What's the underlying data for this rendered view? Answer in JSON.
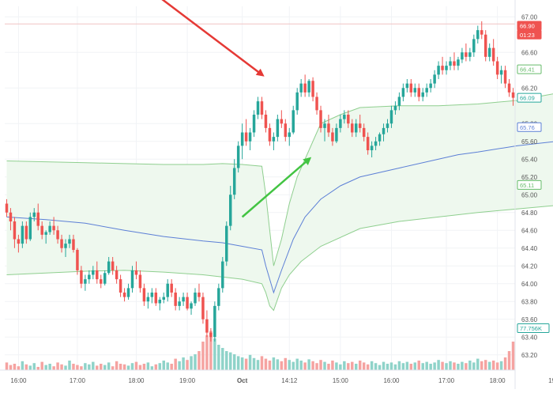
{
  "chart_data": {
    "type": "candlestick",
    "x_axis": {
      "tick_labels": [
        "16:00",
        "17:00",
        "18:00",
        "19:00",
        "Oct",
        "14:12",
        "15:00",
        "16:00",
        "17:00",
        "18:00",
        "19:00"
      ],
      "bold_label": "Oct"
    },
    "y_axis": {
      "position": "right",
      "range": [
        63.1,
        67.1
      ],
      "ticks": [
        67.0,
        66.6,
        66.2,
        65.8,
        65.6,
        65.4,
        65.2,
        65.0,
        64.8,
        64.6,
        64.4,
        64.2,
        64.0,
        63.8,
        63.6,
        63.4,
        63.2
      ],
      "tick_labels": [
        "67.00",
        "66.60",
        "66.20",
        "65.80",
        "65.60",
        "65.40",
        "65.20",
        "65.00",
        "64.80",
        "64.60",
        "64.40",
        "64.20",
        "64.00",
        "63.80",
        "63.60",
        "63.40",
        "63.20"
      ]
    },
    "price_badges": [
      {
        "label": "66.90",
        "value": 66.9,
        "color": "#ef5350",
        "fill": true
      },
      {
        "label": "01:23",
        "value": 66.8,
        "color": "#ef5350",
        "fill": true
      },
      {
        "label": "66.41",
        "value": 66.41,
        "color": "#66bb6a",
        "fill": false
      },
      {
        "label": "66.09",
        "value": 66.09,
        "color": "#26a69a",
        "fill": false
      },
      {
        "label": "65.76",
        "value": 65.76,
        "color": "#5c7fd6",
        "fill": false
      },
      {
        "label": "65.11",
        "value": 65.11,
        "color": "#66bb6a",
        "fill": false
      },
      {
        "label": "77.756K",
        "value": 63.5,
        "color": "#26a69a",
        "fill": false
      }
    ],
    "bands": {
      "upper": [
        [
          0,
          65.38
        ],
        [
          10,
          65.37
        ],
        [
          20,
          65.36
        ],
        [
          30,
          65.35
        ],
        [
          40,
          65.34
        ],
        [
          50,
          65.34
        ],
        [
          55,
          65.35
        ],
        [
          60,
          65.34
        ],
        [
          65,
          65.32
        ],
        [
          66,
          65.0
        ],
        [
          67,
          64.6
        ],
        [
          68,
          64.2
        ],
        [
          70,
          64.5
        ],
        [
          72,
          64.9
        ],
        [
          74,
          65.2
        ],
        [
          76,
          65.4
        ],
        [
          78,
          65.6
        ],
        [
          80,
          65.8
        ],
        [
          85,
          65.9
        ],
        [
          90,
          65.98
        ],
        [
          100,
          66.0
        ],
        [
          110,
          66.0
        ],
        [
          120,
          66.02
        ],
        [
          130,
          66.06
        ],
        [
          140,
          66.14
        ],
        [
          145,
          66.2
        ],
        [
          150,
          66.26
        ],
        [
          155,
          66.32
        ],
        [
          160,
          66.4
        ],
        [
          164,
          66.45
        ]
      ],
      "lower": [
        [
          0,
          64.1
        ],
        [
          10,
          64.12
        ],
        [
          20,
          64.14
        ],
        [
          30,
          64.15
        ],
        [
          40,
          64.13
        ],
        [
          50,
          64.1
        ],
        [
          60,
          64.05
        ],
        [
          65,
          64.0
        ],
        [
          66,
          63.9
        ],
        [
          67,
          63.75
        ],
        [
          68,
          63.7
        ],
        [
          70,
          63.95
        ],
        [
          72,
          64.1
        ],
        [
          75,
          64.25
        ],
        [
          80,
          64.42
        ],
        [
          90,
          64.62
        ],
        [
          100,
          64.7
        ],
        [
          110,
          64.75
        ],
        [
          120,
          64.8
        ],
        [
          130,
          64.84
        ],
        [
          140,
          64.88
        ],
        [
          150,
          64.94
        ],
        [
          158,
          65.0
        ],
        [
          164,
          65.11
        ]
      ],
      "middle": [
        [
          0,
          64.75
        ],
        [
          10,
          64.72
        ],
        [
          20,
          64.68
        ],
        [
          30,
          64.6
        ],
        [
          40,
          64.53
        ],
        [
          50,
          64.48
        ],
        [
          55,
          64.46
        ],
        [
          60,
          64.42
        ],
        [
          65,
          64.38
        ],
        [
          66,
          64.2
        ],
        [
          68,
          63.9
        ],
        [
          70,
          64.15
        ],
        [
          73,
          64.5
        ],
        [
          76,
          64.75
        ],
        [
          80,
          64.95
        ],
        [
          85,
          65.1
        ],
        [
          90,
          65.2
        ],
        [
          100,
          65.3
        ],
        [
          110,
          65.4
        ],
        [
          115,
          65.45
        ],
        [
          120,
          65.48
        ],
        [
          130,
          65.55
        ],
        [
          140,
          65.6
        ],
        [
          150,
          65.68
        ],
        [
          158,
          65.72
        ],
        [
          164,
          65.76
        ]
      ]
    },
    "candles": [
      [
        64.9,
        64.95,
        64.75,
        64.8
      ],
      [
        64.8,
        64.85,
        64.6,
        64.7
      ],
      [
        64.7,
        64.75,
        64.4,
        64.5
      ],
      [
        64.5,
        64.55,
        64.35,
        64.45
      ],
      [
        64.45,
        64.7,
        64.4,
        64.65
      ],
      [
        64.65,
        64.7,
        64.45,
        64.5
      ],
      [
        64.5,
        64.8,
        64.48,
        64.75
      ],
      [
        64.75,
        64.85,
        64.7,
        64.8
      ],
      [
        64.8,
        64.9,
        64.6,
        64.65
      ],
      [
        64.65,
        64.7,
        64.5,
        64.55
      ],
      [
        64.55,
        64.6,
        64.45,
        64.58
      ],
      [
        64.58,
        64.7,
        64.55,
        64.65
      ],
      [
        64.65,
        64.75,
        64.55,
        64.6
      ],
      [
        64.6,
        64.65,
        64.45,
        64.5
      ],
      [
        64.5,
        64.55,
        64.35,
        64.4
      ],
      [
        64.4,
        64.5,
        64.3,
        64.45
      ],
      [
        64.45,
        64.55,
        64.4,
        64.5
      ],
      [
        64.5,
        64.55,
        64.35,
        64.38
      ],
      [
        64.38,
        64.4,
        64.1,
        64.15
      ],
      [
        64.15,
        64.2,
        63.95,
        64.0
      ],
      [
        64.0,
        64.1,
        63.92,
        64.05
      ],
      [
        64.05,
        64.15,
        64.0,
        64.1
      ],
      [
        64.1,
        64.2,
        64.05,
        64.15
      ],
      [
        64.15,
        64.25,
        64.0,
        64.05
      ],
      [
        64.05,
        64.1,
        63.95,
        64.0
      ],
      [
        64.0,
        64.15,
        63.98,
        64.12
      ],
      [
        64.12,
        64.3,
        64.1,
        64.25
      ],
      [
        64.25,
        64.3,
        64.1,
        64.15
      ],
      [
        64.15,
        64.2,
        64.0,
        64.05
      ],
      [
        64.05,
        64.1,
        63.85,
        63.9
      ],
      [
        63.9,
        63.95,
        63.8,
        63.85
      ],
      [
        63.85,
        64.0,
        63.82,
        63.95
      ],
      [
        63.95,
        64.2,
        63.9,
        64.15
      ],
      [
        64.15,
        64.25,
        64.05,
        64.1
      ],
      [
        64.1,
        64.15,
        63.9,
        63.95
      ],
      [
        63.95,
        64.0,
        63.75,
        63.8
      ],
      [
        63.8,
        63.9,
        63.72,
        63.85
      ],
      [
        63.85,
        63.95,
        63.78,
        63.9
      ],
      [
        63.9,
        63.95,
        63.75,
        63.78
      ],
      [
        63.78,
        63.85,
        63.7,
        63.82
      ],
      [
        63.82,
        63.9,
        63.78,
        63.85
      ],
      [
        63.85,
        64.05,
        63.8,
        64.0
      ],
      [
        64.0,
        64.05,
        63.85,
        63.9
      ],
      [
        63.9,
        63.95,
        63.7,
        63.75
      ],
      [
        63.75,
        63.85,
        63.7,
        63.8
      ],
      [
        63.8,
        63.9,
        63.75,
        63.85
      ],
      [
        63.85,
        63.9,
        63.7,
        63.72
      ],
      [
        63.72,
        63.8,
        63.65,
        63.78
      ],
      [
        63.78,
        63.95,
        63.75,
        63.9
      ],
      [
        63.9,
        64.0,
        63.8,
        63.85
      ],
      [
        63.85,
        63.9,
        63.55,
        63.6
      ],
      [
        63.6,
        63.7,
        63.4,
        63.45
      ],
      [
        63.45,
        63.5,
        63.35,
        63.4
      ],
      [
        63.4,
        63.8,
        63.35,
        63.75
      ],
      [
        63.75,
        64.0,
        63.7,
        63.95
      ],
      [
        63.95,
        64.3,
        63.9,
        64.25
      ],
      [
        64.25,
        64.7,
        64.2,
        64.65
      ],
      [
        64.65,
        65.1,
        64.6,
        65.0
      ],
      [
        65.0,
        65.4,
        64.95,
        65.3
      ],
      [
        65.3,
        65.6,
        65.25,
        65.55
      ],
      [
        65.55,
        65.8,
        65.4,
        65.7
      ],
      [
        65.7,
        65.85,
        65.55,
        65.6
      ],
      [
        65.6,
        65.75,
        65.5,
        65.7
      ],
      [
        65.7,
        65.95,
        65.65,
        65.9
      ],
      [
        65.9,
        66.1,
        65.85,
        66.05
      ],
      [
        66.05,
        66.1,
        65.85,
        65.9
      ],
      [
        65.9,
        65.95,
        65.7,
        65.75
      ],
      [
        65.75,
        65.8,
        65.55,
        65.6
      ],
      [
        65.6,
        65.7,
        65.5,
        65.65
      ],
      [
        65.65,
        65.9,
        65.6,
        65.85
      ],
      [
        65.85,
        65.95,
        65.75,
        65.8
      ],
      [
        65.8,
        65.85,
        65.6,
        65.65
      ],
      [
        65.65,
        65.75,
        65.55,
        65.7
      ],
      [
        65.7,
        66.0,
        65.68,
        65.95
      ],
      [
        65.95,
        66.2,
        65.9,
        66.15
      ],
      [
        66.15,
        66.3,
        66.1,
        66.25
      ],
      [
        66.25,
        66.35,
        66.1,
        66.15
      ],
      [
        66.15,
        66.3,
        66.1,
        66.28
      ],
      [
        66.28,
        66.32,
        66.05,
        66.1
      ],
      [
        66.1,
        66.15,
        65.9,
        65.95
      ],
      [
        65.95,
        66.0,
        65.7,
        65.75
      ],
      [
        65.75,
        65.85,
        65.6,
        65.8
      ],
      [
        65.8,
        65.9,
        65.65,
        65.7
      ],
      [
        65.7,
        65.75,
        65.55,
        65.6
      ],
      [
        65.6,
        65.8,
        65.58,
        65.75
      ],
      [
        65.75,
        65.9,
        65.7,
        65.85
      ],
      [
        65.85,
        65.95,
        65.8,
        65.9
      ],
      [
        65.9,
        65.95,
        65.75,
        65.8
      ],
      [
        65.8,
        65.85,
        65.65,
        65.7
      ],
      [
        65.7,
        65.85,
        65.65,
        65.8
      ],
      [
        65.8,
        65.9,
        65.7,
        65.75
      ],
      [
        65.75,
        65.8,
        65.6,
        65.65
      ],
      [
        65.65,
        65.7,
        65.45,
        65.5
      ],
      [
        65.5,
        65.6,
        65.42,
        65.55
      ],
      [
        65.55,
        65.65,
        65.5,
        65.6
      ],
      [
        65.6,
        65.7,
        65.55,
        65.68
      ],
      [
        65.68,
        65.8,
        65.6,
        65.75
      ],
      [
        65.75,
        65.85,
        65.7,
        65.8
      ],
      [
        65.8,
        66.0,
        65.75,
        65.95
      ],
      [
        65.95,
        66.05,
        65.9,
        66.0
      ],
      [
        66.0,
        66.15,
        65.95,
        66.1
      ],
      [
        66.1,
        66.25,
        66.05,
        66.2
      ],
      [
        66.2,
        66.3,
        66.15,
        66.25
      ],
      [
        66.25,
        66.3,
        66.1,
        66.15
      ],
      [
        66.15,
        66.25,
        66.1,
        66.2
      ],
      [
        66.2,
        66.25,
        66.05,
        66.1
      ],
      [
        66.1,
        66.2,
        66.05,
        66.15
      ],
      [
        66.15,
        66.25,
        66.1,
        66.2
      ],
      [
        66.2,
        66.3,
        66.15,
        66.25
      ],
      [
        66.25,
        66.4,
        66.2,
        66.35
      ],
      [
        66.35,
        66.5,
        66.3,
        66.45
      ],
      [
        66.45,
        66.55,
        66.35,
        66.4
      ],
      [
        66.4,
        66.5,
        66.35,
        66.45
      ],
      [
        66.45,
        66.55,
        66.4,
        66.5
      ],
      [
        66.5,
        66.6,
        66.4,
        66.45
      ],
      [
        66.45,
        66.55,
        66.4,
        66.52
      ],
      [
        66.52,
        66.65,
        66.48,
        66.6
      ],
      [
        66.6,
        66.7,
        66.5,
        66.55
      ],
      [
        66.55,
        66.65,
        66.5,
        66.6
      ],
      [
        66.6,
        66.8,
        66.55,
        66.75
      ],
      [
        66.75,
        66.9,
        66.7,
        66.85
      ],
      [
        66.85,
        66.95,
        66.75,
        66.8
      ],
      [
        66.8,
        66.85,
        66.5,
        66.55
      ],
      [
        66.55,
        66.7,
        66.5,
        66.65
      ],
      [
        66.65,
        66.75,
        66.45,
        66.5
      ],
      [
        66.5,
        66.55,
        66.3,
        66.35
      ],
      [
        66.35,
        66.45,
        66.25,
        66.4
      ],
      [
        66.4,
        66.45,
        66.2,
        66.25
      ],
      [
        66.25,
        66.3,
        66.1,
        66.15
      ],
      [
        66.15,
        66.2,
        66.0,
        66.09
      ]
    ],
    "volumes": [
      0.12,
      0.08,
      0.1,
      0.06,
      0.14,
      0.09,
      0.07,
      0.11,
      0.05,
      0.13,
      0.08,
      0.1,
      0.06,
      0.12,
      0.09,
      0.07,
      0.15,
      0.1,
      0.08,
      0.06,
      0.11,
      0.09,
      0.13,
      0.07,
      0.1,
      0.08,
      0.12,
      0.06,
      0.14,
      0.1,
      0.09,
      0.07,
      0.11,
      0.13,
      0.08,
      0.1,
      0.12,
      0.06,
      0.09,
      0.11,
      0.15,
      0.12,
      0.1,
      0.18,
      0.14,
      0.2,
      0.16,
      0.22,
      0.25,
      0.3,
      0.45,
      0.55,
      0.62,
      0.5,
      0.4,
      0.35,
      0.3,
      0.28,
      0.25,
      0.22,
      0.2,
      0.18,
      0.24,
      0.19,
      0.16,
      0.22,
      0.18,
      0.15,
      0.2,
      0.17,
      0.14,
      0.19,
      0.16,
      0.13,
      0.18,
      0.15,
      0.12,
      0.17,
      0.14,
      0.11,
      0.16,
      0.13,
      0.1,
      0.15,
      0.12,
      0.09,
      0.14,
      0.11,
      0.13,
      0.1,
      0.15,
      0.12,
      0.09,
      0.14,
      0.11,
      0.08,
      0.13,
      0.1,
      0.12,
      0.09,
      0.14,
      0.11,
      0.13,
      0.1,
      0.12,
      0.15,
      0.11,
      0.13,
      0.1,
      0.12,
      0.16,
      0.13,
      0.11,
      0.14,
      0.12,
      0.1,
      0.13,
      0.11,
      0.15,
      0.12,
      0.18,
      0.14,
      0.16,
      0.13,
      0.15,
      0.12,
      0.14,
      0.2,
      0.3,
      0.45
    ],
    "annotations": [
      {
        "kind": "arrow",
        "color": "#e53935",
        "from": [
          35,
          67.35
        ],
        "to": [
          65,
          66.35
        ]
      },
      {
        "kind": "arrow",
        "color": "#e53935",
        "from": [
          155,
          67.4
        ],
        "to": [
          160,
          66.92
        ]
      },
      {
        "kind": "arrow",
        "color": "#43c443",
        "from": [
          60,
          64.75
        ],
        "to": [
          77,
          65.4
        ]
      }
    ],
    "colors": {
      "up": "#26a69a",
      "down": "#ef5350",
      "volume_up": "#8fd3c9",
      "volume_down": "#f5a3a1",
      "band_fill": "#eef8ee",
      "band_line": "#8fcf8f",
      "middle_line": "#5c7fd6"
    }
  }
}
